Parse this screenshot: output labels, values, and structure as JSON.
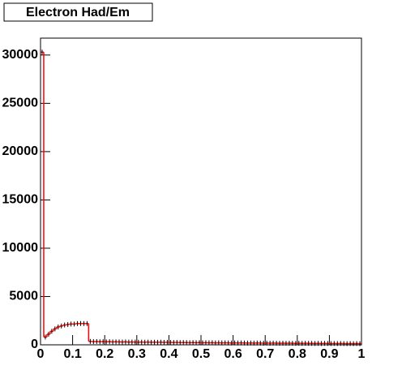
{
  "chart_data": {
    "type": "histogram",
    "title": "Electron Had/Em",
    "bins": [
      0,
      0.01,
      0.02,
      0.03,
      0.04,
      0.05,
      0.06,
      0.07,
      0.08,
      0.09,
      0.1,
      0.11,
      0.12,
      0.13,
      0.14,
      0.15,
      0.16,
      0.17,
      0.18,
      0.19,
      0.2,
      0.21,
      0.22,
      0.23,
      0.24,
      0.25,
      0.26,
      0.27,
      0.28,
      0.29,
      0.3,
      0.31,
      0.32,
      0.33,
      0.34,
      0.35,
      0.36,
      0.37,
      0.38,
      0.39,
      0.4,
      0.41,
      0.42,
      0.43,
      0.44,
      0.45,
      0.46,
      0.47,
      0.48,
      0.49,
      0.5,
      0.51,
      0.52,
      0.53,
      0.54,
      0.55,
      0.56,
      0.57,
      0.58,
      0.59,
      0.6,
      0.61,
      0.62,
      0.63,
      0.64,
      0.65,
      0.66,
      0.67,
      0.68,
      0.69,
      0.7,
      0.71,
      0.72,
      0.73,
      0.74,
      0.75,
      0.76,
      0.77,
      0.78,
      0.79,
      0.8,
      0.81,
      0.82,
      0.83,
      0.84,
      0.85,
      0.86,
      0.87,
      0.88,
      0.89,
      0.9,
      0.91,
      0.92,
      0.93,
      0.94,
      0.95,
      0.96,
      0.97,
      0.98,
      0.99,
      1
    ],
    "values": [
      30300,
      800,
      1100,
      1400,
      1650,
      1850,
      1950,
      2050,
      2100,
      2150,
      2150,
      2200,
      2200,
      2200,
      2200,
      350,
      330,
      340,
      320,
      330,
      310,
      320,
      300,
      310,
      300,
      290,
      300,
      280,
      290,
      280,
      270,
      280,
      270,
      280,
      260,
      270,
      260,
      270,
      250,
      260,
      250,
      240,
      250,
      230,
      240,
      230,
      220,
      230,
      220,
      230,
      210,
      220,
      210,
      220,
      200,
      210,
      200,
      210,
      200,
      190,
      200,
      190,
      200,
      190,
      180,
      190,
      180,
      190,
      180,
      170,
      180,
      170,
      180,
      170,
      160,
      170,
      160,
      170,
      160,
      150,
      160,
      150,
      160,
      150,
      150,
      140,
      150,
      140,
      150,
      140,
      130,
      140,
      130,
      140,
      130,
      120,
      130,
      120,
      130,
      120
    ],
    "color": "#ff0000",
    "xlim": [
      0,
      1
    ],
    "xticks": [
      0,
      0.1,
      0.2,
      0.3,
      0.4,
      0.5,
      0.6,
      0.7,
      0.8,
      0.9,
      1
    ],
    "ylim": [
      0,
      31750
    ],
    "yticks": [
      0,
      5000,
      10000,
      15000,
      20000,
      25000,
      30000
    ]
  }
}
